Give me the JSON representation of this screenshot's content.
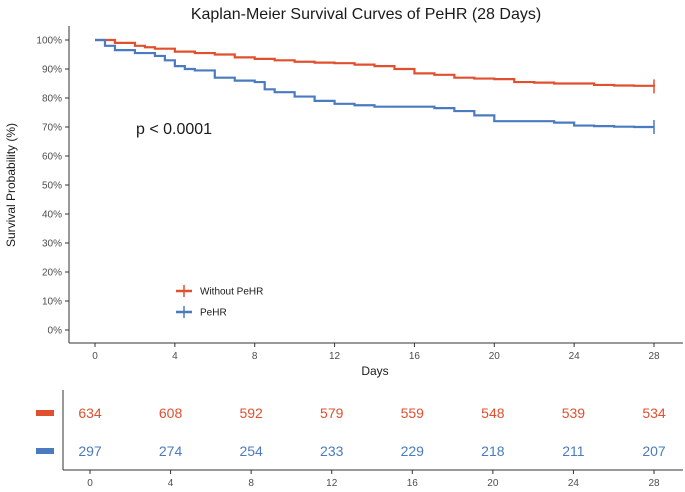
{
  "chart_data": {
    "type": "line",
    "title": "Kaplan-Meier Survival Curves of PeHR (28 Days)",
    "xlabel": "Days",
    "ylabel": "Survival Probability (%)",
    "xlim": [
      0,
      28
    ],
    "ylim": [
      0,
      100
    ],
    "x_ticks": [
      0,
      4,
      8,
      12,
      16,
      20,
      24,
      28
    ],
    "y_ticks": [
      0,
      10,
      20,
      30,
      40,
      50,
      60,
      70,
      80,
      90,
      100
    ],
    "y_tick_labels": [
      "0%",
      "10%",
      "20%",
      "30%",
      "40%",
      "50%",
      "60%",
      "70%",
      "80%",
      "90%",
      "100%"
    ],
    "x_tick_labels": [
      "0",
      "4",
      "8",
      "12",
      "16",
      "20",
      "24",
      "28"
    ],
    "annotation": "p < 0.0001",
    "legend_position": "bottom-left",
    "series": [
      {
        "name": "Without PeHR",
        "color": "#E0502F",
        "x": [
          0,
          1,
          2,
          2.5,
          3,
          4,
          5,
          6,
          7,
          8,
          9,
          10,
          11,
          12,
          13,
          14,
          15,
          16,
          17,
          18,
          19,
          20,
          21,
          22,
          23,
          24,
          25,
          26,
          27,
          28
        ],
        "y": [
          100,
          99,
          98,
          97.5,
          97,
          96,
          95.5,
          95,
          94,
          93.5,
          93,
          92.5,
          92.2,
          92,
          91.5,
          91,
          90,
          88.5,
          88,
          87,
          86.7,
          86.5,
          85.5,
          85.3,
          85,
          85,
          84.5,
          84.3,
          84.2,
          84
        ]
      },
      {
        "name": "PeHR",
        "color": "#4A7BC0",
        "x": [
          0,
          0.5,
          1,
          2,
          3,
          3.5,
          4,
          4.5,
          5,
          6,
          7,
          8,
          8.5,
          9,
          10,
          11,
          12,
          13,
          14,
          15,
          16,
          17,
          18,
          19,
          20,
          21,
          22,
          23,
          24,
          25,
          26,
          27,
          28
        ],
        "y": [
          100,
          98,
          96.5,
          95.5,
          94.5,
          93,
          91,
          90,
          89.5,
          87,
          86,
          85.5,
          83,
          82,
          80.5,
          79,
          78,
          77.5,
          77,
          77,
          77,
          76.5,
          75.5,
          74,
          72,
          72,
          72,
          71.5,
          70.5,
          70.3,
          70.1,
          70,
          70
        ]
      }
    ],
    "risk_table": {
      "times": [
        0,
        4,
        8,
        12,
        16,
        20,
        24,
        28
      ],
      "tick_labels": [
        "0",
        "4",
        "8",
        "12",
        "16",
        "20",
        "24",
        "28"
      ],
      "rows": [
        {
          "name": "Without PeHR",
          "color": "#E0502F",
          "counts": [
            "634",
            "608",
            "592",
            "579",
            "559",
            "548",
            "539",
            "534"
          ]
        },
        {
          "name": "PeHR",
          "color": "#4A7BC0",
          "counts": [
            "297",
            "274",
            "254",
            "233",
            "229",
            "218",
            "211",
            "207"
          ]
        }
      ]
    }
  }
}
